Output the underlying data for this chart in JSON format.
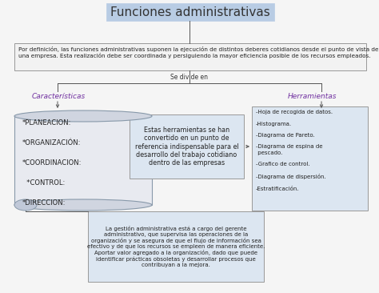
{
  "title": "Funciones administrativas",
  "title_box_color": "#b8cce4",
  "title_text_color": "#333333",
  "bg_color": "#f5f5f5",
  "definition_text": "Por definición, las funciones administrativas suponen la ejecución de distintos deberes cotidianos desde el punto de vista de\nuna empresa. Esta realización debe ser coordinada y persiguiendo la mayor eficiencia posible de los recursos empleados.",
  "se_divide_en": "Se divide en",
  "caracteristicas_label": "Características",
  "herramientas_label": "Herramientas",
  "label_color": "#7030a0",
  "caracteristicas_items": "*PLANEACION:\n\n*ORGANIZACIÓN:\n\n*COORDINACION:\n\n  *CONTROL:\n\n*DIRECCION:",
  "herramientas_items": "-Hoja de recogida de datos.\n\n-Histograma.\n\n-Diagrama de Pareto.\n\n-Diagrama de espina de\n pescado.\n\n-Grafico de control.\n\n-Diagrama de dispersión.\n\n-Estratificación.",
  "center_box_text": "Estas herramientas se han\nconvertido en un punto de\nreferencia indispensable para el\ndesarrollo del trabajo cotidiano\ndentro de las empresas",
  "bottom_box_text": "La gestión administrativa está a cargo del gerente\nadministrativo, que supervisa las operaciones de la\norganización y se asegura de que el flujo de información sea\nefectivo y de que los recursos se empleen de manera eficiente.\nAportar valor agregado a la organización, dado que puede\nidentificar prácticas obsoletas y desarrollar procesos que\ncontribuyan a la mejora.",
  "box_border_color": "#999999",
  "scroll_face": "#e8eaf0",
  "scroll_roll": "#d0d5e0",
  "scroll_inner": "#c0c8d8",
  "scroll_edge": "#8899aa",
  "tools_face": "#dce6f1",
  "center_face": "#dce6f1",
  "bottom_face": "#dce6f1",
  "def_face": "#f2f2f2",
  "line_color": "#555555",
  "font_size_title": 11,
  "font_size_def": 5.2,
  "font_size_items": 6.0,
  "font_size_label": 6.5,
  "font_size_center": 5.8,
  "font_size_bottom": 5.0,
  "font_size_divide": 5.5
}
